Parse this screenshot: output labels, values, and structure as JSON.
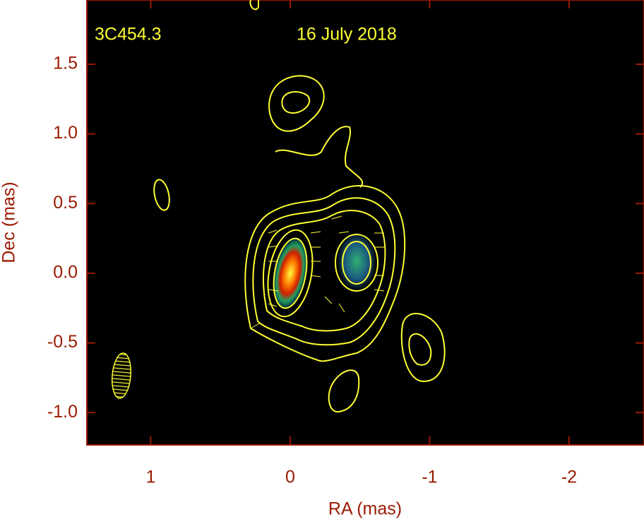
{
  "chart_data": {
    "type": "image",
    "annotations": [
      "3C454.3",
      "16 July 2018"
    ],
    "xlabel": "RA (mas)",
    "ylabel": "Dec (mas)",
    "xlim": [
      1.458,
      -2.537
    ],
    "ylim": [
      -1.232,
      1.961
    ],
    "xticks": [
      1,
      0,
      -1,
      -2
    ],
    "yticks": [
      {
        "value": -1,
        "label": "-1.0"
      },
      -0.5,
      {
        "value": 0,
        "label": "0.0"
      },
      0.5,
      {
        "value": 1,
        "label": "1.0"
      },
      1.5
    ]
  }
}
